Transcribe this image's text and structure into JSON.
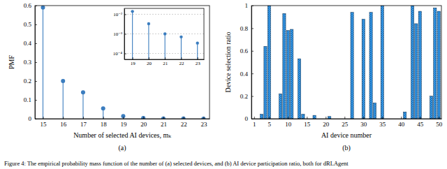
{
  "caption": "Figure 4: The empirical probability mass function of the number of (a) selected devices, and (b) AI device participation ratio, both for dRLAgent",
  "chart_data": [
    {
      "type": "stem",
      "subtitle": "(a)",
      "x_label": "Number of selected AI devices, mₖ",
      "y_label": "PMF",
      "x": [
        15,
        16,
        17,
        18,
        19,
        20,
        21,
        22,
        23
      ],
      "values": [
        0.59,
        0.2,
        0.14,
        0.055,
        0.014,
        0.0033,
        0.001,
        0.0007,
        0.00034
      ],
      "color": "#3b7dbf",
      "marker": "circle",
      "xlim": [
        14.6,
        23.3
      ],
      "xticks": [
        15,
        16,
        17,
        18,
        19,
        20,
        21,
        22,
        23
      ],
      "ylim": [
        0,
        0.6
      ],
      "yticks": [
        0,
        0.1,
        0.2,
        0.3,
        0.4,
        0.5,
        0.6
      ]
    },
    {
      "type": "stem",
      "x": [
        19,
        20,
        21,
        22,
        23
      ],
      "values": [
        0.014,
        0.0033,
        0.001,
        0.0007,
        0.00034
      ],
      "color": "#3b7dbf",
      "marker": "circle",
      "log": "y",
      "grid": true,
      "xlim": [
        18.5,
        23.4
      ],
      "xticks": [
        19,
        20,
        21,
        22,
        23
      ],
      "ylim": [
        5e-05,
        0.02
      ],
      "yticks": [
        {
          "value": 0.0001,
          "label": "10⁻⁴"
        },
        {
          "value": 0.001,
          "label": "10⁻³"
        },
        {
          "value": 0.01,
          "label": "10⁻²"
        }
      ]
    },
    {
      "type": "bar",
      "subtitle": "(b)",
      "x_label": "AI device number",
      "y_label": "Device selection ratio",
      "x": [
        1,
        2,
        3,
        4,
        5,
        6,
        7,
        8,
        9,
        10,
        11,
        12,
        13,
        14,
        15,
        16,
        17,
        18,
        19,
        20,
        21,
        22,
        23,
        24,
        25,
        26,
        27,
        28,
        29,
        30,
        31,
        32,
        33,
        34,
        35,
        36,
        37,
        38,
        39,
        40,
        41,
        42,
        43,
        44,
        45,
        46,
        47,
        48,
        49,
        50
      ],
      "values": [
        0,
        0,
        0.04,
        0.64,
        1.0,
        0,
        0,
        0.22,
        0.93,
        0.78,
        0.79,
        0,
        0.53,
        0.04,
        0,
        0,
        0.03,
        0,
        0,
        0,
        0.02,
        0,
        0,
        0,
        0,
        0,
        0.94,
        0,
        0,
        0.88,
        0,
        0.94,
        0.14,
        0,
        1.0,
        0,
        0,
        0,
        0,
        0,
        0.06,
        0,
        1.0,
        0.84,
        0.95,
        0,
        0,
        0.2,
        0.98,
        0.95
      ],
      "color": "#1f5f99",
      "xlim": [
        0.3,
        50.7
      ],
      "xticks": [
        1,
        5,
        10,
        15,
        20,
        25,
        30,
        35,
        40,
        45,
        50
      ],
      "ylim": [
        0,
        1
      ],
      "yticks": [
        0,
        0.2,
        0.4,
        0.6,
        0.8,
        1
      ]
    }
  ]
}
